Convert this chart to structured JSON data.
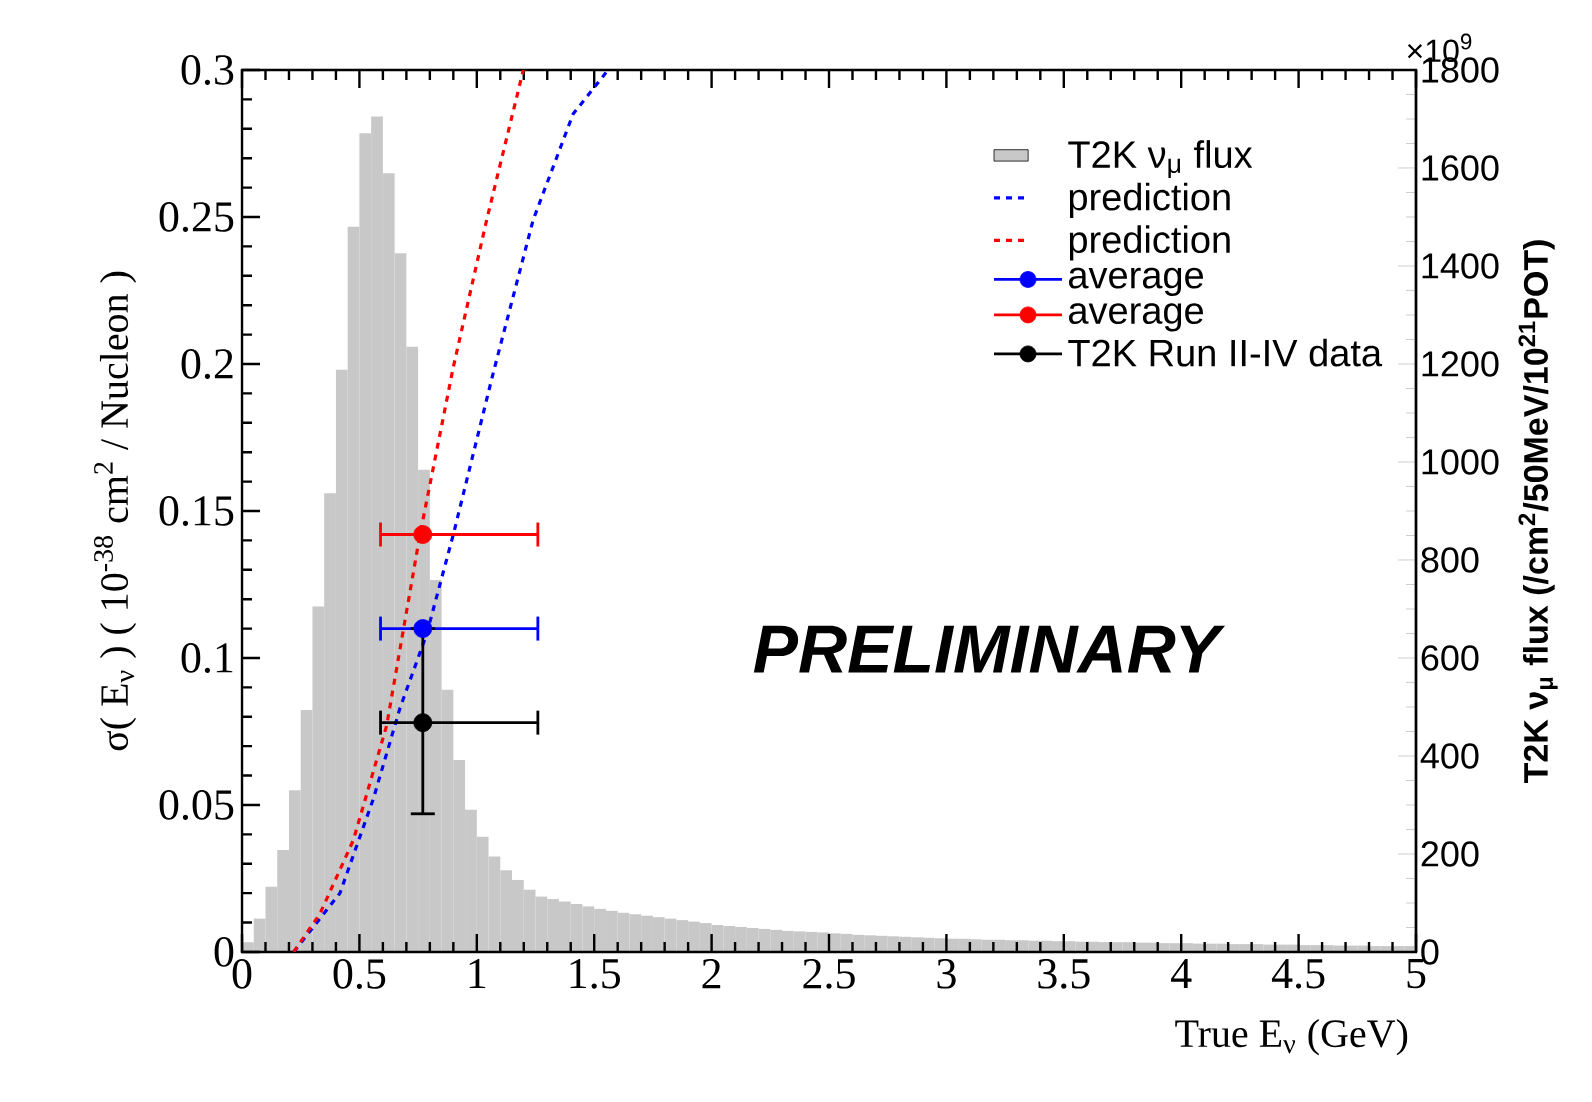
{
  "chart_data": {
    "type": "line",
    "xlabel": "True E$_{ν}$ (GeV)",
    "ylabel": "σ( E$_{ν}$ ) ( 10$^{-38}$ cm$^{2}$ / Nucleon )",
    "y2label": "T2K ν$_{μ}$ flux (/cm$^{2}$/50MeV/10$^{21}$POT)",
    "annotations": [
      "PRELIMINARY",
      "×10$^{9}$"
    ],
    "xlim": [
      0,
      5
    ],
    "ylim": [
      0,
      0.3
    ],
    "y2lim": [
      0,
      1800
    ],
    "xticks": [
      0,
      0.5,
      1,
      1.5,
      2,
      2.5,
      3,
      3.5,
      4,
      4.5,
      5
    ],
    "yticks": [
      0,
      0.05,
      0.1,
      0.15,
      0.2,
      0.25,
      0.3
    ],
    "y2ticks": [
      0,
      200,
      400,
      600,
      800,
      1000,
      1200,
      1400,
      1600,
      1800
    ],
    "legend": "top right",
    "series": [
      {
        "name": "T2K ν$_{μ}$ flux",
        "type": "histogram",
        "axis": "y2",
        "color": "#c8c8c8",
        "bins": [
          0,
          0.05,
          0.1,
          0.15,
          0.2,
          0.25,
          0.3,
          0.35,
          0.4,
          0.45,
          0.5,
          0.55,
          0.6,
          0.65,
          0.7,
          0.75,
          0.8,
          0.85,
          0.9,
          0.95,
          1,
          1.05,
          1.1,
          1.15,
          1.2,
          1.25,
          1.3,
          1.35,
          1.4,
          1.45,
          1.5,
          1.55,
          1.6,
          1.65,
          1.7,
          1.75,
          1.8,
          1.85,
          1.9,
          1.95,
          2,
          2.05,
          2.1,
          2.15,
          2.2,
          2.25,
          2.3,
          2.35,
          2.4,
          2.45,
          2.5,
          2.55,
          2.6,
          2.65,
          2.7,
          2.75,
          2.8,
          2.85,
          2.9,
          2.95,
          3,
          3.05,
          3.1,
          3.15,
          3.2,
          3.25,
          3.3,
          3.35,
          3.4,
          3.45,
          3.5,
          3.55,
          3.6,
          3.65,
          3.7,
          3.75,
          3.8,
          3.85,
          3.9,
          3.95,
          4,
          4.05,
          4.1,
          4.15,
          4.2,
          4.25,
          4.3,
          4.35,
          4.4,
          4.45,
          4.5,
          4.55,
          4.6,
          4.65,
          4.7,
          4.75,
          4.8,
          4.85,
          4.9,
          4.95,
          5
        ],
        "values": [
          20,
          68,
          133,
          208,
          330,
          494,
          705,
          936,
          1188,
          1480,
          1671,
          1705,
          1589,
          1426,
          1235,
          984,
          759,
          535,
          392,
          290,
          235,
          195,
          167,
          147,
          127,
          113,
          108,
          103,
          98,
          93,
          88,
          84,
          80,
          77,
          74,
          71,
          68,
          65,
          62,
          59,
          55,
          53,
          51,
          49,
          47,
          45,
          43,
          42,
          41,
          40,
          38,
          37,
          35,
          34,
          33,
          32,
          31,
          30,
          29,
          28,
          27,
          27,
          26,
          25,
          25,
          24,
          24,
          23,
          23,
          22,
          22,
          21,
          21,
          20,
          20,
          20,
          19,
          19,
          18,
          18,
          18,
          17,
          17,
          17,
          16,
          16,
          16,
          15,
          15,
          15,
          14,
          14,
          14,
          13,
          13,
          13,
          12,
          12,
          12,
          12
        ]
      },
      {
        "name": "prediction",
        "color": "#0000ff",
        "line_style": "dashed",
        "x": [
          0.22,
          0.417,
          0.559,
          0.673,
          0.786,
          0.9,
          1.07,
          1.24,
          1.41,
          1.559
        ],
        "values": [
          0,
          0.02,
          0.052,
          0.083,
          0.108,
          0.142,
          0.197,
          0.249,
          0.285,
          0.3
        ]
      },
      {
        "name": "prediction",
        "color": "#ff0000",
        "line_style": "dashed",
        "x": [
          0.22,
          0.332,
          0.474,
          0.616,
          0.758,
          0.9,
          1.042,
          1.198
        ],
        "values": [
          0,
          0.013,
          0.038,
          0.077,
          0.142,
          0.199,
          0.249,
          0.3
        ]
      },
      {
        "name": "average",
        "type": "scatter",
        "color": "#0000ff",
        "marker": "circle",
        "x": [
          0.77
        ],
        "values": [
          0.11
        ],
        "xerrors": [
          [
            0.59,
            1.26
          ]
        ]
      },
      {
        "name": "average",
        "type": "scatter",
        "color": "#ff0000",
        "marker": "circle",
        "x": [
          0.77
        ],
        "values": [
          0.142
        ],
        "xerrors": [
          [
            0.59,
            1.26
          ]
        ]
      },
      {
        "name": "T2K Run II-IV data",
        "type": "scatter",
        "color": "#000000",
        "marker": "circle",
        "x": [
          0.77
        ],
        "values": [
          0.078
        ],
        "xerrors": [
          [
            0.59,
            1.26
          ]
        ],
        "errors": [
          [
            0.047,
            0.11
          ]
        ]
      }
    ]
  }
}
